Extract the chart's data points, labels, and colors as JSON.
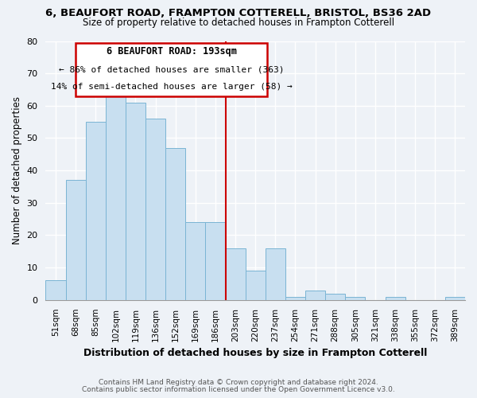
{
  "title1": "6, BEAUFORT ROAD, FRAMPTON COTTERELL, BRISTOL, BS36 2AD",
  "title2": "Size of property relative to detached houses in Frampton Cotterell",
  "xlabel": "Distribution of detached houses by size in Frampton Cotterell",
  "ylabel": "Number of detached properties",
  "bin_labels": [
    "51sqm",
    "68sqm",
    "85sqm",
    "102sqm",
    "119sqm",
    "136sqm",
    "152sqm",
    "169sqm",
    "186sqm",
    "203sqm",
    "220sqm",
    "237sqm",
    "254sqm",
    "271sqm",
    "288sqm",
    "305sqm",
    "321sqm",
    "338sqm",
    "355sqm",
    "372sqm",
    "389sqm"
  ],
  "bar_values": [
    6,
    37,
    55,
    63,
    61,
    56,
    47,
    24,
    24,
    16,
    9,
    16,
    1,
    3,
    2,
    1,
    0,
    1,
    0,
    0,
    1
  ],
  "bar_color": "#c8dff0",
  "bar_edge_color": "#7ab4d4",
  "highlight_bar_idx": 8,
  "highlight_line_color": "#cc0000",
  "annotation_title": "6 BEAUFORT ROAD: 193sqm",
  "annotation_line1": "← 86% of detached houses are smaller (363)",
  "annotation_line2": "14% of semi-detached houses are larger (58) →",
  "annotation_box_color": "#ffffff",
  "annotation_box_edge": "#cc0000",
  "ylim": [
    0,
    80
  ],
  "yticks": [
    0,
    10,
    20,
    30,
    40,
    50,
    60,
    70,
    80
  ],
  "footnote1": "Contains HM Land Registry data © Crown copyright and database right 2024.",
  "footnote2": "Contains public sector information licensed under the Open Government Licence v3.0.",
  "bg_color": "#eef2f7"
}
